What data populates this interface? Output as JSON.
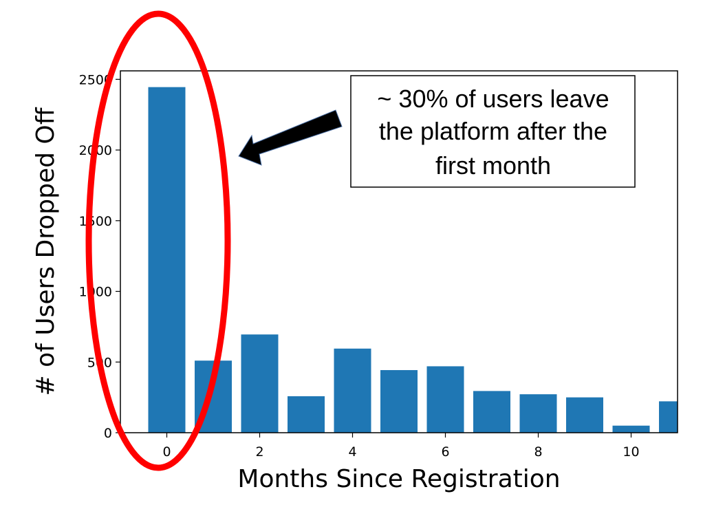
{
  "chart_data": {
    "type": "bar",
    "title": "",
    "xlabel": "Months Since Registration",
    "ylabel": "# of Users Dropped Off",
    "x": [
      0,
      1,
      2,
      3,
      4,
      5,
      6,
      7,
      8,
      9,
      10,
      11
    ],
    "values": [
      2445,
      510,
      695,
      258,
      595,
      443,
      470,
      295,
      272,
      250,
      50,
      222
    ],
    "xlim": [
      -1,
      11
    ],
    "ylim": [
      0,
      2560
    ],
    "xticks": [
      0,
      2,
      4,
      6,
      8,
      10
    ],
    "yticks": [
      0,
      500,
      1000,
      1500,
      2000,
      2500
    ],
    "xtick_labels": [
      "0",
      "2",
      "4",
      "6",
      "8",
      "10"
    ],
    "ytick_labels": [
      "0",
      "500",
      "1000",
      "1500",
      "2000",
      "2500"
    ],
    "grid": false,
    "bar_color": "#1f77b4",
    "annotation": {
      "lines": [
        "~ 30% of users leave",
        "the platform after the",
        "first month"
      ],
      "highlight_color": "#ff0000",
      "arrow_color": "#000000"
    }
  }
}
